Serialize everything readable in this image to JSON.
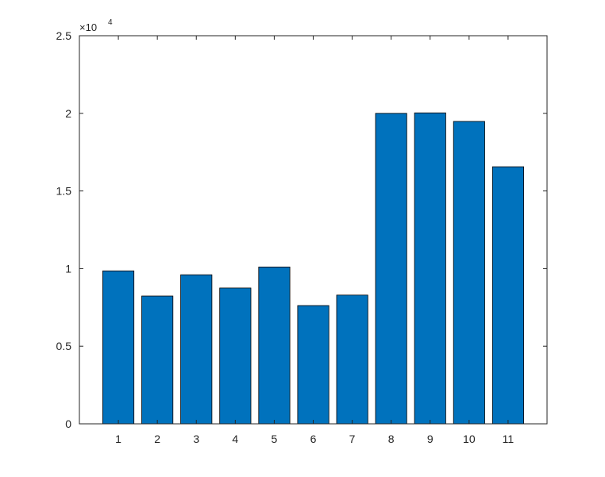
{
  "chart_data": {
    "type": "bar",
    "categories": [
      "1",
      "2",
      "3",
      "4",
      "5",
      "6",
      "7",
      "8",
      "9",
      "10",
      "11"
    ],
    "values": [
      9850,
      8230,
      9600,
      8750,
      10100,
      7620,
      8290,
      20000,
      20030,
      19480,
      16560
    ],
    "title": "",
    "xlabel": "",
    "ylabel": "",
    "ylim": [
      0,
      25000
    ],
    "y_ticks": [
      0,
      5000,
      10000,
      15000,
      20000,
      25000
    ],
    "y_tick_labels": [
      "0",
      "0.5",
      "1",
      "1.5",
      "2",
      "2.5"
    ],
    "y_exponent_label": "×10",
    "y_exponent_power": "4",
    "grid": false,
    "bar_color": "#0072BD",
    "bar_edge_color": "#000000",
    "axis_color": "#262626"
  }
}
